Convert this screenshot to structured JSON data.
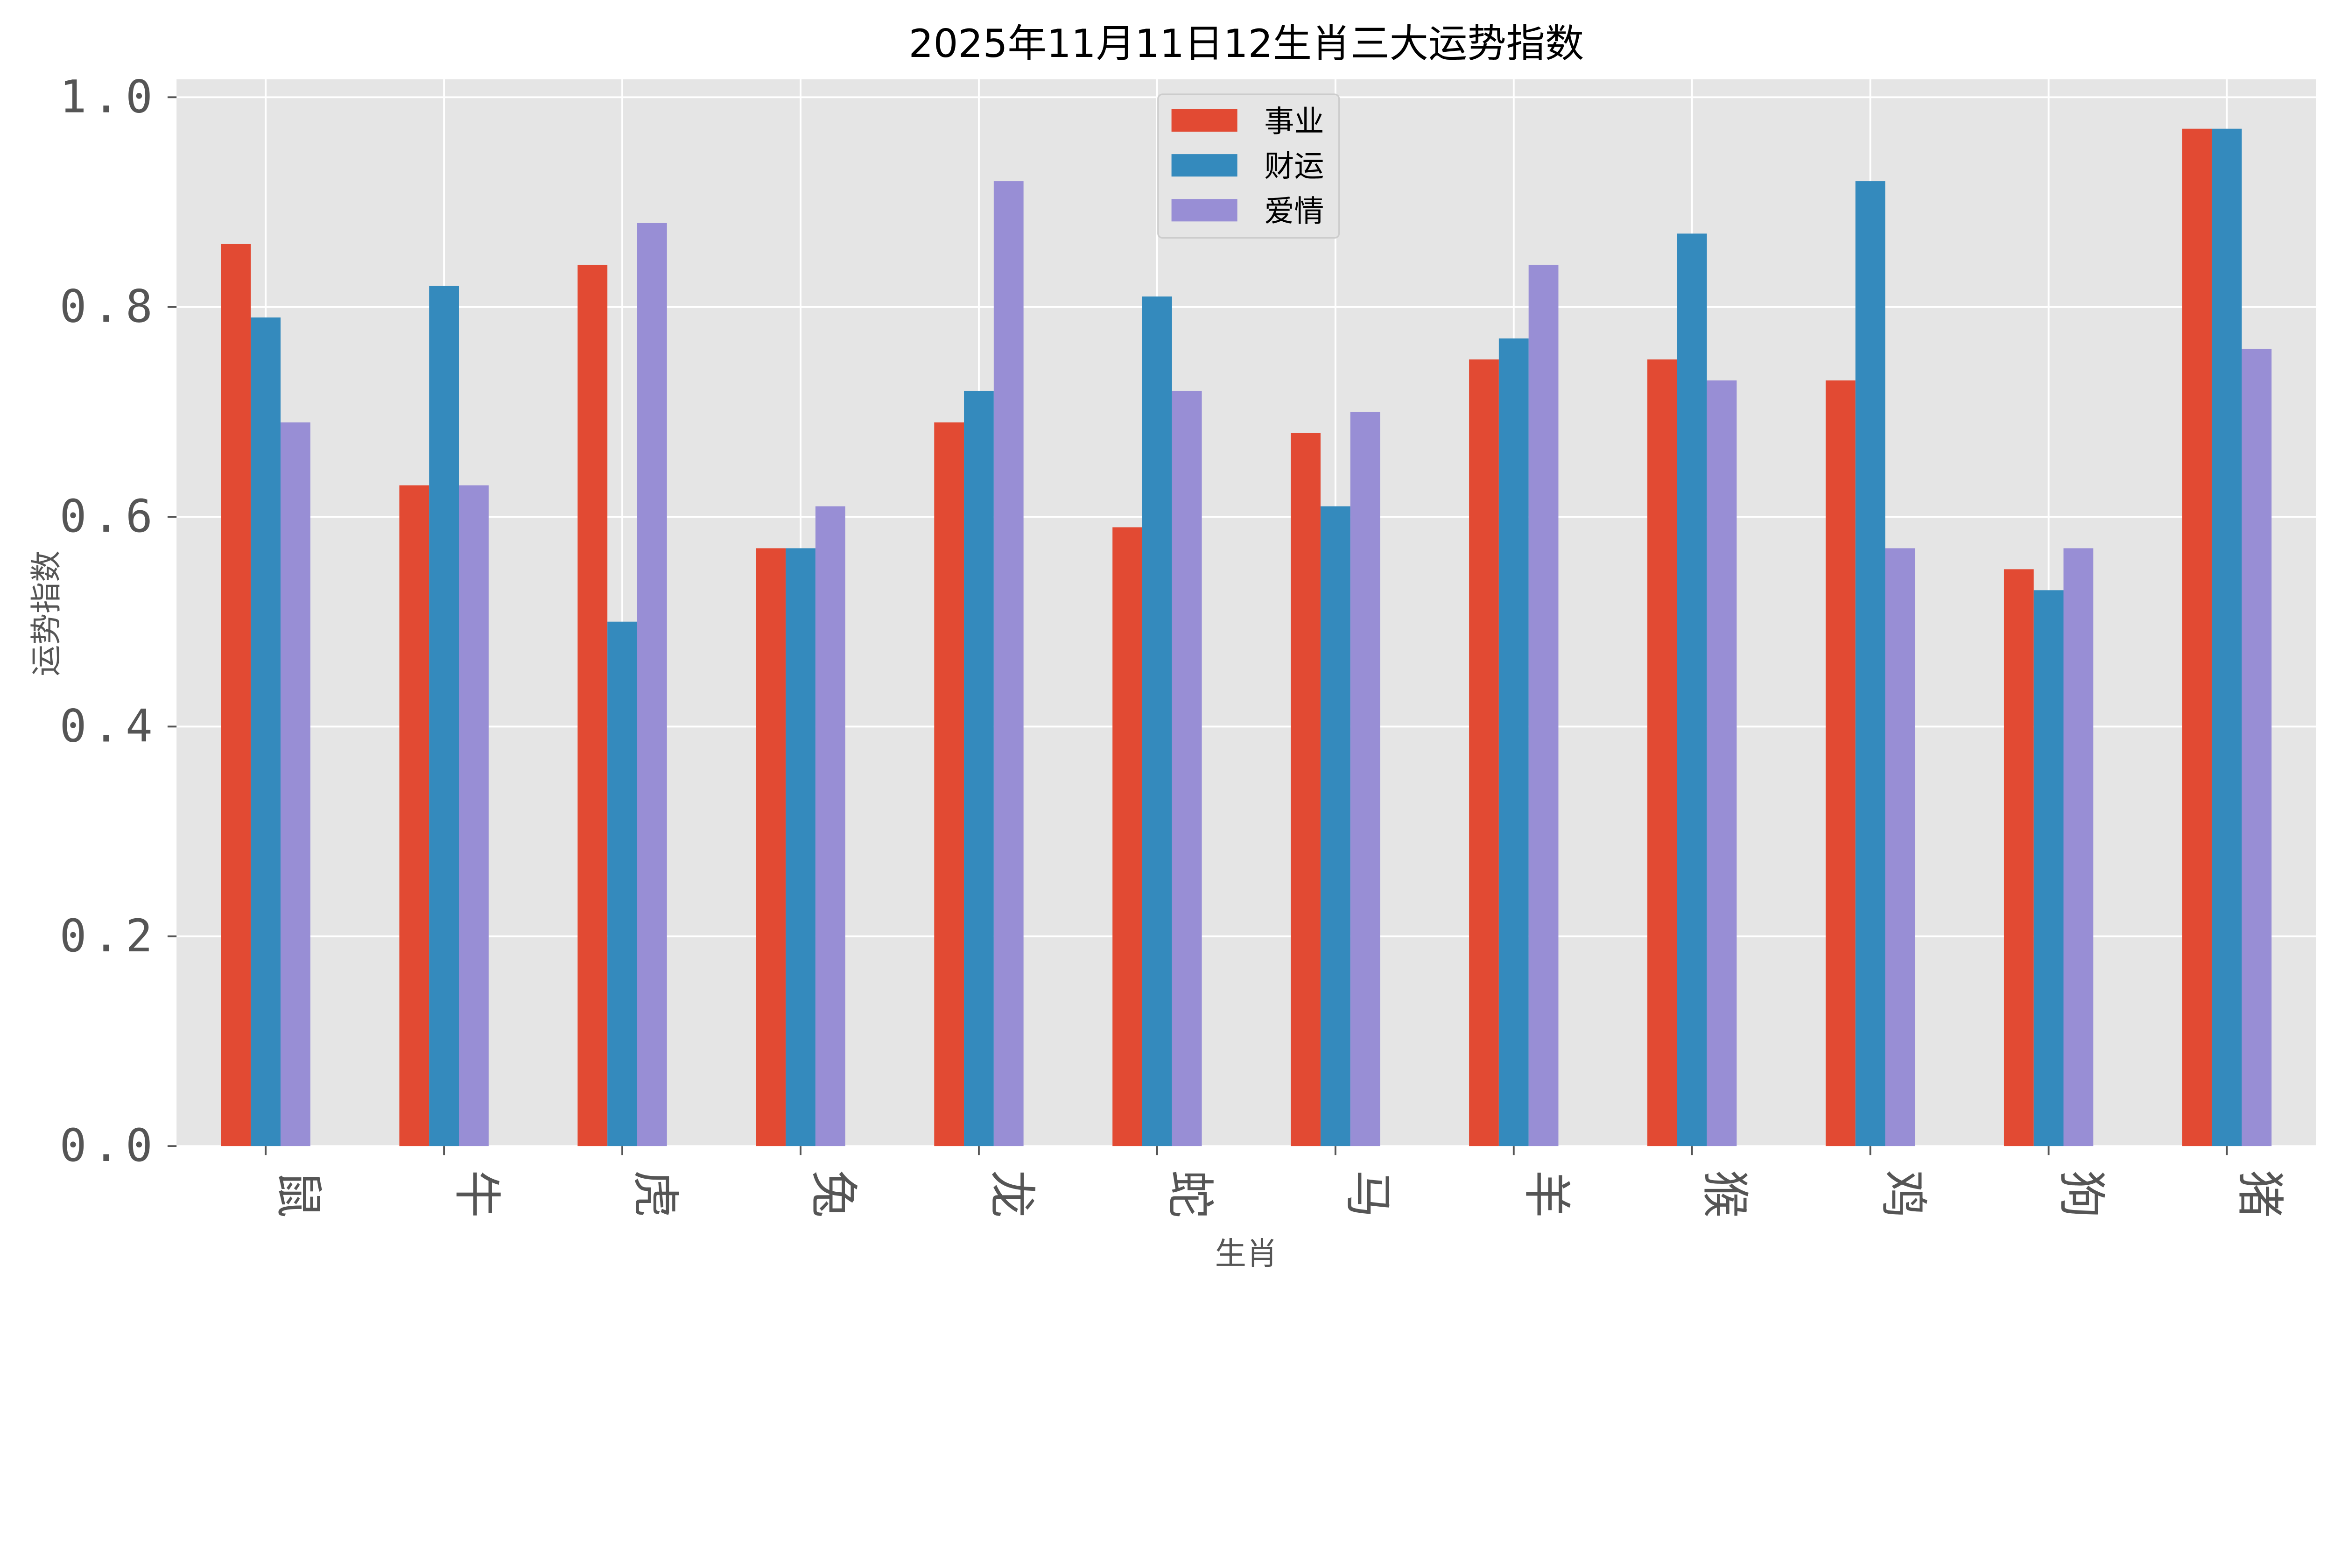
{
  "chart_data": {
    "type": "bar",
    "title": "2025年11月11日12生肖三大运势指数",
    "xlabel": "生肖",
    "ylabel": "运势指数",
    "categories": [
      "鼠",
      "牛",
      "虎",
      "兔",
      "龙",
      "蛇",
      "马",
      "羊",
      "猴",
      "鸡",
      "狗",
      "猪"
    ],
    "series": [
      {
        "name": "事业",
        "color": "#E24A33",
        "values": [
          0.86,
          0.63,
          0.84,
          0.57,
          0.69,
          0.59,
          0.68,
          0.75,
          0.75,
          0.73,
          0.55,
          0.97
        ]
      },
      {
        "name": "财运",
        "color": "#348ABD",
        "values": [
          0.79,
          0.82,
          0.5,
          0.57,
          0.72,
          0.81,
          0.61,
          0.77,
          0.87,
          0.92,
          0.53,
          0.97
        ]
      },
      {
        "name": "爱情",
        "color": "#988ED5",
        "values": [
          0.69,
          0.63,
          0.88,
          0.61,
          0.92,
          0.72,
          0.7,
          0.84,
          0.73,
          0.57,
          0.57,
          0.76
        ]
      }
    ],
    "ylim": [
      0,
      1.0
    ],
    "yticks": [
      "0.0",
      "0.2",
      "0.4",
      "0.6",
      "0.8",
      "1.0"
    ],
    "grid": true,
    "legend_position": "top-center",
    "background": "#E5E5E5"
  }
}
